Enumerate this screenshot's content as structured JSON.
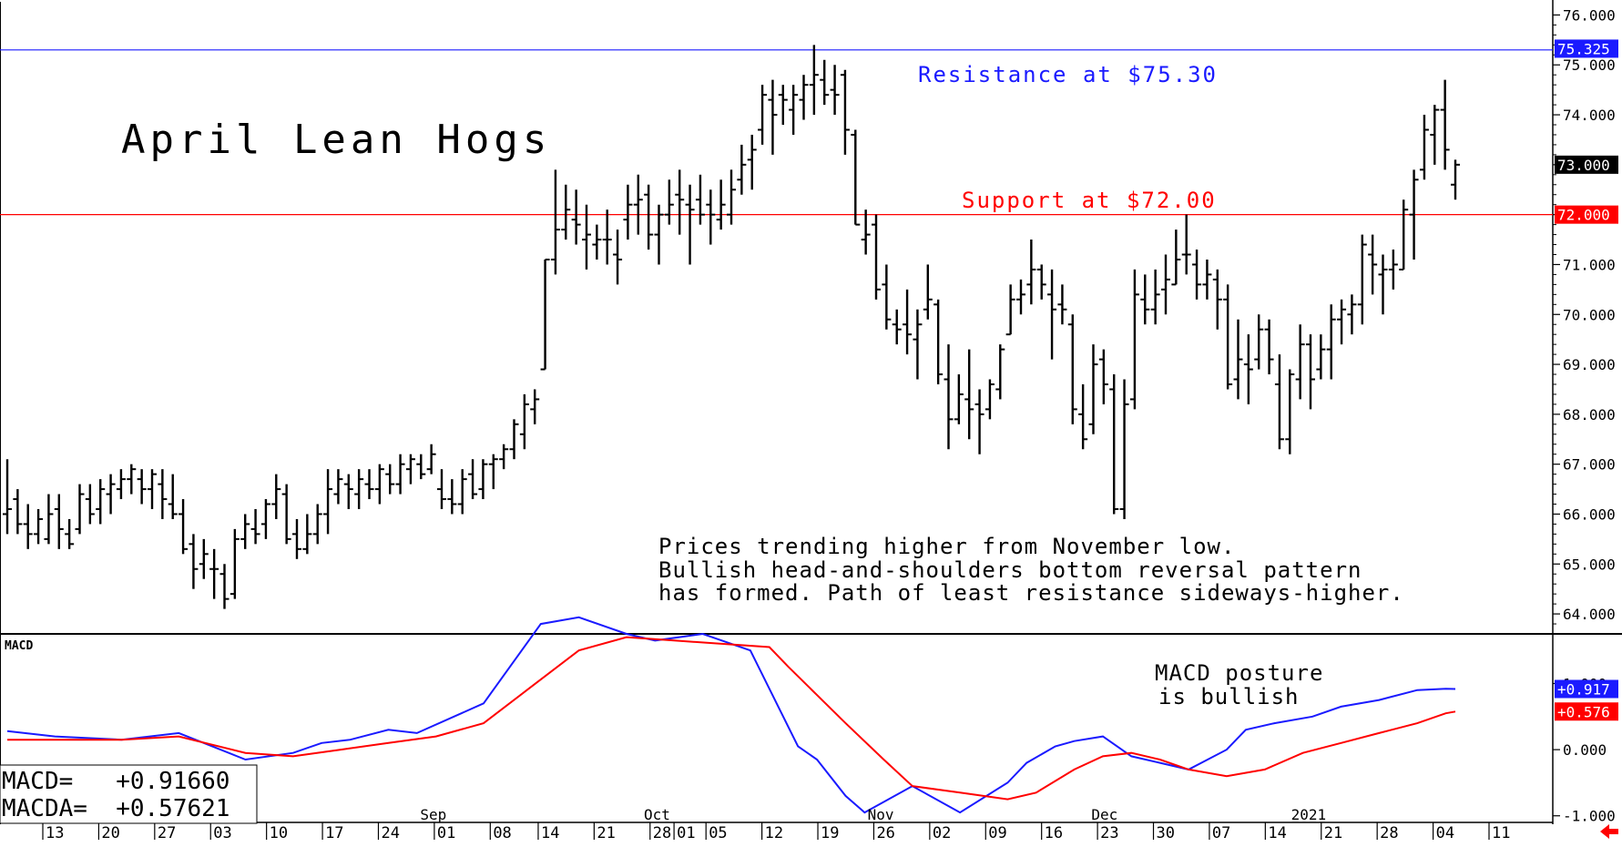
{
  "chart_data": [
    {
      "type": "ohlc",
      "title": "April Lean Hogs",
      "annotations": [
        "Resistance at $75.30",
        "Support at $72.00",
        "Prices trending higher from November low.",
        "Bullish head-and-shoulders bottom reversal pattern",
        "has formed. Path of least resistance sideways-higher."
      ],
      "yaxis_ticks": [
        "76.000",
        "75.000",
        "74.000",
        "73.000",
        "72.000",
        "71.000",
        "70.000",
        "69.000",
        "68.000",
        "67.000",
        "66.000",
        "65.000",
        "64.000"
      ],
      "ylim": [
        63.6,
        76.3
      ],
      "badges": [
        {
          "label": "75.325",
          "value": 75.325,
          "color": "#1a1aff",
          "text_color": "#ffffff"
        },
        {
          "label": "73.000",
          "value": 73.0,
          "color": "#000000",
          "text_color": "#ffffff"
        },
        {
          "label": "72.000",
          "value": 72.0,
          "color": "#ff0000",
          "text_color": "#ffffff"
        }
      ],
      "lines": [
        {
          "value": 75.3,
          "color": "#1a1aff"
        },
        {
          "value": 72.0,
          "color": "#ff0000"
        }
      ],
      "ohlc": [
        [
          66.0,
          67.1,
          65.6,
          66.1
        ],
        [
          66.3,
          66.5,
          65.6,
          65.8
        ],
        [
          65.8,
          66.2,
          65.3,
          65.6
        ],
        [
          65.6,
          66.1,
          65.4,
          65.9
        ],
        [
          65.5,
          66.4,
          65.4,
          66.0
        ],
        [
          66.1,
          66.4,
          65.3,
          65.7
        ],
        [
          65.6,
          65.9,
          65.3,
          65.4
        ],
        [
          65.7,
          66.6,
          65.6,
          66.4
        ],
        [
          66.3,
          66.6,
          65.8,
          66.0
        ],
        [
          66.1,
          66.7,
          65.8,
          66.5
        ],
        [
          66.4,
          66.8,
          66.0,
          66.6
        ],
        [
          66.5,
          66.9,
          66.3,
          66.7
        ],
        [
          66.7,
          67.0,
          66.4,
          66.9
        ],
        [
          66.7,
          66.9,
          66.2,
          66.5
        ],
        [
          66.5,
          66.9,
          66.1,
          66.8
        ],
        [
          66.6,
          66.9,
          65.9,
          66.3
        ],
        [
          66.2,
          66.8,
          65.9,
          66.0
        ],
        [
          66.0,
          66.3,
          65.2,
          65.3
        ],
        [
          65.4,
          65.6,
          64.5,
          64.9
        ],
        [
          65.0,
          65.5,
          64.7,
          65.2
        ],
        [
          64.9,
          65.3,
          64.3,
          64.9
        ],
        [
          64.8,
          65.0,
          64.1,
          64.3
        ],
        [
          64.4,
          65.7,
          64.3,
          65.5
        ],
        [
          65.5,
          66.0,
          65.3,
          65.8
        ],
        [
          65.7,
          66.1,
          65.4,
          65.6
        ],
        [
          65.8,
          66.3,
          65.5,
          66.2
        ],
        [
          66.2,
          66.8,
          65.9,
          66.5
        ],
        [
          66.4,
          66.6,
          65.4,
          65.5
        ],
        [
          65.6,
          65.9,
          65.1,
          65.3
        ],
        [
          65.3,
          66.0,
          65.2,
          65.6
        ],
        [
          65.6,
          66.2,
          65.4,
          66.0
        ],
        [
          66.0,
          66.9,
          65.6,
          66.5
        ],
        [
          66.4,
          66.9,
          66.2,
          66.7
        ],
        [
          66.6,
          66.8,
          66.1,
          66.5
        ],
        [
          66.4,
          66.9,
          66.1,
          66.7
        ],
        [
          66.6,
          66.9,
          66.3,
          66.5
        ],
        [
          66.5,
          67.0,
          66.2,
          66.9
        ],
        [
          66.8,
          67.0,
          66.4,
          66.6
        ],
        [
          66.6,
          67.2,
          66.4,
          67.0
        ],
        [
          66.9,
          67.2,
          66.6,
          67.1
        ],
        [
          67.0,
          67.2,
          66.7,
          66.8
        ],
        [
          66.9,
          67.4,
          66.8,
          67.2
        ],
        [
          66.5,
          66.9,
          66.1,
          66.3
        ],
        [
          66.3,
          66.7,
          66.0,
          66.2
        ],
        [
          66.2,
          66.9,
          66.0,
          66.7
        ],
        [
          66.8,
          67.1,
          66.3,
          66.4
        ],
        [
          66.5,
          67.1,
          66.3,
          67.0
        ],
        [
          67.0,
          67.2,
          66.5,
          67.1
        ],
        [
          67.1,
          67.4,
          66.9,
          67.3
        ],
        [
          67.3,
          67.9,
          67.1,
          67.8
        ],
        [
          67.6,
          68.4,
          67.3,
          68.2
        ],
        [
          68.1,
          68.5,
          67.8,
          68.3
        ],
        [
          68.9,
          71.1,
          68.9,
          71.1
        ],
        [
          71.1,
          72.9,
          70.8,
          71.7
        ],
        [
          71.7,
          72.6,
          71.5,
          72.1
        ],
        [
          71.9,
          72.5,
          71.4,
          71.8
        ],
        [
          71.5,
          72.2,
          70.9,
          71.6
        ],
        [
          71.4,
          71.8,
          71.1,
          71.5
        ],
        [
          71.5,
          72.1,
          71.0,
          71.5
        ],
        [
          71.2,
          71.7,
          70.6,
          71.1
        ],
        [
          71.9,
          72.6,
          71.5,
          72.2
        ],
        [
          72.2,
          72.8,
          71.6,
          72.3
        ],
        [
          72.4,
          72.6,
          71.3,
          71.6
        ],
        [
          71.6,
          72.2,
          71.0,
          72.0
        ],
        [
          72.0,
          72.7,
          71.8,
          72.2
        ],
        [
          72.4,
          72.9,
          71.6,
          72.3
        ],
        [
          72.2,
          72.6,
          71.0,
          72.1
        ],
        [
          72.3,
          72.8,
          71.8,
          72.0
        ],
        [
          72.2,
          72.5,
          71.4,
          72.0
        ],
        [
          71.9,
          72.7,
          71.7,
          72.2
        ],
        [
          72.0,
          72.9,
          71.8,
          72.5
        ],
        [
          72.7,
          73.4,
          72.4,
          73.0
        ],
        [
          73.1,
          73.6,
          72.5,
          73.3
        ],
        [
          73.7,
          74.6,
          73.4,
          74.4
        ],
        [
          74.3,
          74.7,
          73.2,
          74.0
        ],
        [
          74.4,
          74.6,
          73.8,
          74.3
        ],
        [
          74.1,
          74.6,
          73.6,
          74.4
        ],
        [
          74.3,
          74.8,
          73.9,
          74.6
        ],
        [
          74.6,
          75.4,
          74.0,
          74.8
        ],
        [
          74.7,
          75.1,
          74.2,
          74.4
        ],
        [
          74.5,
          75.0,
          74.0,
          74.4
        ],
        [
          74.8,
          74.9,
          73.2,
          73.7
        ],
        [
          73.6,
          73.7,
          71.8,
          71.8
        ],
        [
          71.5,
          72.1,
          71.2,
          71.6
        ],
        [
          71.8,
          72.0,
          70.3,
          70.5
        ],
        [
          70.6,
          71.0,
          69.7,
          69.9
        ],
        [
          69.8,
          70.1,
          69.4,
          69.7
        ],
        [
          69.8,
          70.5,
          69.2,
          69.6
        ],
        [
          69.5,
          70.1,
          68.7,
          69.8
        ],
        [
          70.1,
          71.0,
          69.9,
          70.3
        ],
        [
          70.2,
          70.3,
          68.6,
          68.8
        ],
        [
          68.7,
          69.4,
          67.3,
          67.9
        ],
        [
          67.9,
          68.8,
          67.8,
          68.4
        ],
        [
          68.3,
          69.3,
          67.5,
          68.1
        ],
        [
          68.2,
          68.5,
          67.2,
          68.0
        ],
        [
          68.1,
          68.7,
          67.9,
          68.6
        ],
        [
          68.5,
          69.4,
          68.3,
          69.3
        ],
        [
          69.6,
          70.6,
          69.6,
          70.3
        ],
        [
          70.3,
          70.7,
          70.0,
          70.4
        ],
        [
          70.6,
          71.5,
          70.2,
          70.9
        ],
        [
          70.9,
          71.0,
          70.3,
          70.6
        ],
        [
          70.4,
          70.9,
          69.1,
          70.1
        ],
        [
          70.2,
          70.6,
          69.8,
          70.1
        ],
        [
          69.8,
          70.0,
          67.8,
          68.1
        ],
        [
          68.0,
          68.6,
          67.3,
          67.5
        ],
        [
          67.8,
          69.4,
          67.6,
          69.0
        ],
        [
          69.1,
          69.3,
          68.2,
          68.6
        ],
        [
          68.5,
          68.8,
          66.0,
          66.1
        ],
        [
          66.1,
          68.7,
          65.9,
          68.2
        ],
        [
          68.3,
          70.9,
          68.1,
          70.4
        ],
        [
          70.3,
          70.8,
          69.8,
          70.1
        ],
        [
          70.1,
          70.9,
          69.8,
          70.4
        ],
        [
          70.5,
          71.2,
          70.0,
          70.7
        ],
        [
          70.6,
          71.7,
          70.6,
          71.1
        ],
        [
          71.2,
          72.0,
          70.8,
          71.2
        ],
        [
          71.0,
          71.3,
          70.3,
          70.6
        ],
        [
          70.6,
          71.1,
          70.3,
          70.8
        ],
        [
          70.7,
          70.9,
          69.7,
          70.3
        ],
        [
          70.3,
          70.6,
          68.5,
          68.6
        ],
        [
          68.7,
          69.9,
          68.3,
          69.1
        ],
        [
          69.0,
          69.6,
          68.2,
          68.9
        ],
        [
          69.1,
          70.0,
          68.9,
          69.7
        ],
        [
          69.7,
          69.9,
          68.8,
          69.1
        ],
        [
          68.6,
          69.2,
          67.3,
          67.5
        ],
        [
          67.5,
          68.9,
          67.2,
          68.8
        ],
        [
          68.7,
          69.8,
          68.3,
          69.4
        ],
        [
          69.4,
          69.6,
          68.1,
          68.7
        ],
        [
          68.9,
          69.6,
          68.7,
          69.3
        ],
        [
          69.3,
          70.2,
          68.7,
          69.9
        ],
        [
          69.9,
          70.3,
          69.4,
          70.1
        ],
        [
          70.0,
          70.4,
          69.6,
          70.2
        ],
        [
          70.2,
          71.6,
          69.8,
          71.4
        ],
        [
          71.2,
          71.6,
          70.4,
          71.0
        ],
        [
          70.8,
          71.2,
          70.0,
          70.9
        ],
        [
          70.9,
          71.3,
          70.5,
          71.0
        ],
        [
          70.9,
          72.3,
          70.9,
          72.1
        ],
        [
          72.0,
          72.9,
          71.1,
          72.7
        ],
        [
          72.9,
          74.0,
          72.7,
          73.7
        ],
        [
          73.6,
          74.2,
          73.0,
          74.1
        ],
        [
          74.1,
          74.7,
          72.9,
          73.3
        ],
        [
          72.6,
          73.1,
          72.3,
          73.0
        ]
      ]
    },
    {
      "type": "line",
      "title": "MACD",
      "readouts": [
        "MACD=   +0.91660",
        "MACDA=  +0.57621"
      ],
      "annotation_lines": [
        "MACD posture",
        "is bullish"
      ],
      "yaxis_ticks": [
        "1.000",
        "0.000",
        "-1.000"
      ],
      "ylim": [
        -1.1,
        1.75
      ],
      "badges": [
        {
          "label": "+0.917",
          "value": 0.917,
          "color": "#1a1aff",
          "text_color": "#ffffff"
        },
        {
          "label": "+0.576",
          "value": 0.576,
          "color": "#ff0000",
          "text_color": "#ffffff"
        }
      ],
      "series": [
        {
          "name": "MACD",
          "color": "#1a1aff",
          "x": [
            0,
            5,
            12,
            18,
            25,
            30,
            33,
            36,
            40,
            43,
            50,
            56,
            60,
            65,
            68,
            73,
            78,
            83,
            85,
            88,
            90,
            95,
            100,
            105,
            107,
            110,
            112,
            115,
            118,
            121,
            124,
            128,
            130,
            133,
            137,
            140,
            144,
            148,
            151,
            152
          ],
          "values": [
            0.28,
            0.2,
            0.15,
            0.25,
            -0.15,
            -0.05,
            0.1,
            0.15,
            0.3,
            0.25,
            0.7,
            1.9,
            2.0,
            1.75,
            1.65,
            1.75,
            1.5,
            0.05,
            -0.15,
            -0.7,
            -0.95,
            -0.55,
            -0.95,
            -0.5,
            -0.2,
            0.05,
            0.13,
            0.2,
            -0.1,
            -0.2,
            -0.3,
            0.0,
            0.3,
            0.4,
            0.5,
            0.65,
            0.75,
            0.9,
            0.92,
            0.917
          ]
        },
        {
          "name": "MACDA",
          "color": "#ff0000",
          "x": [
            0,
            5,
            12,
            18,
            25,
            30,
            35,
            40,
            45,
            50,
            55,
            60,
            65,
            70,
            75,
            80,
            82,
            88,
            92,
            95,
            100,
            105,
            108,
            112,
            115,
            118,
            121,
            124,
            128,
            132,
            136,
            140,
            144,
            148,
            151,
            152
          ],
          "values": [
            0.15,
            0.15,
            0.15,
            0.2,
            -0.05,
            -0.1,
            0.0,
            0.1,
            0.2,
            0.4,
            0.95,
            1.5,
            1.7,
            1.65,
            1.6,
            1.55,
            1.25,
            0.4,
            -0.15,
            -0.55,
            -0.65,
            -0.75,
            -0.65,
            -0.3,
            -0.1,
            -0.05,
            -0.15,
            -0.3,
            -0.4,
            -0.3,
            -0.05,
            0.1,
            0.25,
            0.4,
            0.55,
            0.576
          ]
        }
      ]
    }
  ],
  "xaxis": {
    "month_labels": [
      {
        "label": "Sep",
        "day": 48
      },
      {
        "label": "Oct",
        "day": 76
      },
      {
        "label": "Nov",
        "day": 104
      },
      {
        "label": "Dec",
        "day": 132
      },
      {
        "label": "2021",
        "day": 157
      }
    ],
    "date_labels": [
      {
        "label": "13",
        "day": 1
      },
      {
        "label": "20",
        "day": 8
      },
      {
        "label": "27",
        "day": 15
      },
      {
        "label": "03",
        "day": 22
      },
      {
        "label": "10",
        "day": 29
      },
      {
        "label": "17",
        "day": 36
      },
      {
        "label": "24",
        "day": 43
      },
      {
        "label": "01",
        "day": 50
      },
      {
        "label": "08",
        "day": 57
      },
      {
        "label": "14",
        "day": 63
      },
      {
        "label": "21",
        "day": 70
      },
      {
        "label": "28",
        "day": 77
      },
      {
        "label": "01",
        "day": 80
      },
      {
        "label": "05",
        "day": 84
      },
      {
        "label": "12",
        "day": 91
      },
      {
        "label": "19",
        "day": 98
      },
      {
        "label": "26",
        "day": 105
      },
      {
        "label": "02",
        "day": 112
      },
      {
        "label": "09",
        "day": 119
      },
      {
        "label": "16",
        "day": 126
      },
      {
        "label": "23",
        "day": 133
      },
      {
        "label": "30",
        "day": 140
      },
      {
        "label": "07",
        "day": 147
      },
      {
        "label": "14",
        "day": 154
      },
      {
        "label": "21",
        "day": 161
      },
      {
        "label": "28",
        "day": 168
      },
      {
        "label": "04",
        "day": 175
      },
      {
        "label": "11",
        "day": 182
      }
    ]
  }
}
